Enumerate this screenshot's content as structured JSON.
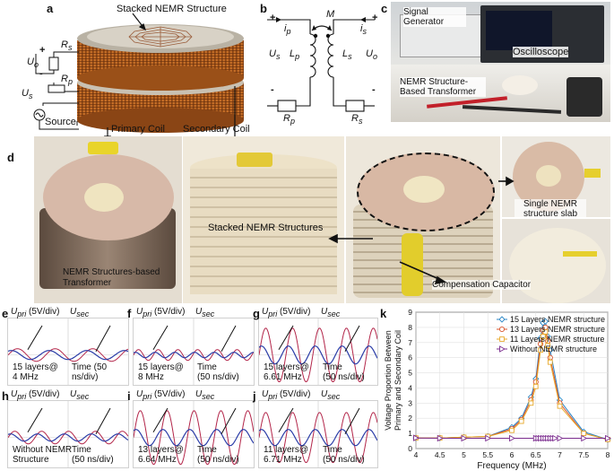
{
  "panels": {
    "a": {
      "letter": "a",
      "stacked_label": "Stacked NEMR Structure",
      "Rs": "R",
      "Rs_sub": "s",
      "Uo": "U",
      "Uo_sub": "o",
      "Rp": "R",
      "Rp_sub": "p",
      "Us": "U",
      "Us_sub": "s",
      "plus": "+",
      "minus": "-",
      "source": "Source",
      "primary": "Primary Coil",
      "secondary": "Secondary Coil"
    },
    "b": {
      "letter": "b",
      "M": "M",
      "ip": "i",
      "ip_sub": "p",
      "is": "i",
      "is_sub": "s",
      "Us": "U",
      "Us_sub": "s",
      "Lp": "L",
      "Lp_sub": "p",
      "Ls": "L",
      "Ls_sub": "s",
      "Uo": "U",
      "Uo_sub": "o",
      "Rp": "R",
      "Rp_sub": "p",
      "Rs": "R",
      "Rs_sub": "s",
      "plus": "+",
      "minus": "-"
    },
    "c": {
      "letter": "c",
      "signal_generator": "Signal Generator",
      "oscilloscope": "Oscilloscope",
      "transformer": "NEMR Structure-Based Transformer"
    },
    "d": {
      "letter": "d",
      "left_caption": "NEMR Structures-based Transformer",
      "stacked": "Stacked NEMR Structures",
      "single": "Single NEMR structure slab",
      "capacitor": "Compensation Capacitor"
    }
  },
  "scopes": [
    {
      "letter": "e",
      "upri": "U",
      "upri_sub": "pri",
      "upri_scale": " (5V/div)",
      "usec": "U",
      "usec_sub": "sec",
      "left": "15 layers@",
      "left2": "4 MHz",
      "right": "Time (50",
      "right2": "ns/div)"
    },
    {
      "letter": "f",
      "upri": "U",
      "upri_sub": "pri",
      "upri_scale": " (5V/div)",
      "usec": "U",
      "usec_sub": "sec",
      "left": "15 layers@",
      "left2": "8 MHz",
      "right": "Time",
      "right2": "(50 ns/div)"
    },
    {
      "letter": "g",
      "upri": "U",
      "upri_sub": "pri",
      "upri_scale": " (5V/div)",
      "usec": "U",
      "usec_sub": "sec",
      "left": "15 layers@",
      "left2": "6.61 MHz",
      "right": "Time",
      "right2": "(50 ns/div)"
    },
    {
      "letter": "h",
      "upri": "U",
      "upri_sub": "pri",
      "upri_scale": " (5V/div)",
      "usec": "U",
      "usec_sub": "sec",
      "left": "Without NEMR",
      "left2": "Structure",
      "right": "Time",
      "right2": "(50 ns/div)"
    },
    {
      "letter": "i",
      "upri": "U",
      "upri_sub": "pri",
      "upri_scale": " (5V/div)",
      "usec": "U",
      "usec_sub": "sec",
      "left": "13 layers@",
      "left2": "6.64 MHz",
      "right": "Time",
      "right2": "(50 ns/div)"
    },
    {
      "letter": "j",
      "upri": "U",
      "upri_sub": "pri",
      "upri_scale": " (5V/div)",
      "usec": "U",
      "usec_sub": "sec",
      "left": "11 layers@",
      "left2": "6.71 MHz",
      "right": "Time",
      "right2": "(50 ns/div)"
    }
  ],
  "chart_data": {
    "type": "line",
    "letter": "k",
    "xlabel": "Frequency (MHz)",
    "ylabel_line1": "Voltage Proportion Between",
    "ylabel_line2": "Primary and Secondary Coil",
    "xlim": [
      4,
      8
    ],
    "ylim": [
      0,
      9
    ],
    "xticks": [
      "4",
      "4.5",
      "5",
      "5.5",
      "6",
      "6.5",
      "7",
      "7.5",
      "8"
    ],
    "yticks": [
      "0",
      "1",
      "2",
      "3",
      "4",
      "5",
      "6",
      "7",
      "8",
      "9"
    ],
    "grid": true,
    "legend": "top-right",
    "series": [
      {
        "name": "15 Layers NEMR structure",
        "color": "#2a86c6",
        "marker": "diamond",
        "x": [
          4,
          4.5,
          5,
          5.5,
          6,
          6.2,
          6.4,
          6.5,
          6.6,
          6.65,
          6.7,
          6.75,
          6.8,
          7,
          7.5,
          8
        ],
        "y": [
          0.7,
          0.7,
          0.75,
          0.8,
          1.4,
          2.0,
          3.4,
          4.6,
          7.3,
          8.3,
          8.4,
          7.4,
          6.5,
          3.2,
          1.1,
          0.6
        ]
      },
      {
        "name": "13 Layers NEMR structure",
        "color": "#d9532b",
        "marker": "circle",
        "x": [
          4,
          4.5,
          5,
          5.5,
          6,
          6.2,
          6.4,
          6.5,
          6.6,
          6.65,
          6.7,
          6.75,
          6.8,
          7,
          7.5,
          8
        ],
        "y": [
          0.7,
          0.7,
          0.75,
          0.8,
          1.3,
          1.9,
          3.2,
          4.4,
          6.9,
          7.8,
          8.0,
          7.1,
          6.0,
          3.0,
          1.0,
          0.6
        ]
      },
      {
        "name": "11 Layers NEMR structure",
        "color": "#e8a92a",
        "marker": "square",
        "x": [
          4,
          4.5,
          5,
          5.5,
          6,
          6.2,
          6.4,
          6.5,
          6.6,
          6.65,
          6.7,
          6.75,
          6.8,
          7,
          7.5,
          8
        ],
        "y": [
          0.7,
          0.7,
          0.75,
          0.8,
          1.2,
          1.8,
          3.0,
          4.1,
          6.5,
          7.4,
          7.7,
          6.8,
          5.7,
          2.8,
          1.0,
          0.6
        ]
      },
      {
        "name": "Without NEMR structure",
        "color": "#7b2c8e",
        "marker": "triangle-right",
        "x": [
          4,
          4.5,
          5,
          5.5,
          6,
          6.5,
          6.55,
          6.6,
          6.65,
          6.7,
          6.75,
          6.8,
          6.85,
          6.9,
          7,
          7.5,
          8
        ],
        "y": [
          0.7,
          0.68,
          0.68,
          0.68,
          0.68,
          0.68,
          0.68,
          0.68,
          0.68,
          0.68,
          0.68,
          0.68,
          0.68,
          0.68,
          0.68,
          0.68,
          0.68
        ]
      }
    ]
  }
}
